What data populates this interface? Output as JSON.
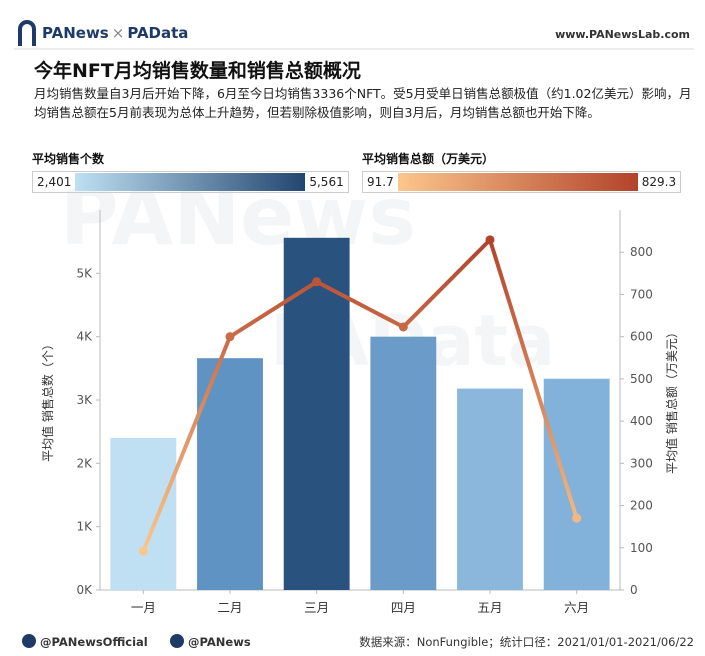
{
  "header": {
    "brand_left": "PANews",
    "brand_sep": "×",
    "brand_right": "PAData",
    "site_url": "www.PANewsLab.com"
  },
  "title": "今年NFT月均销售数量和销售总额概况",
  "subtitle": "月均销售数量自3月后开始下降，6月至今日均销售3336个NFT。受5月受单日销售总额极值（约1.02亿美元）影响，月均销售总额在5月前表现为总体上升趋势，但若剔除极值影响，则自3月后，月均销售总额也开始下降。",
  "legend_count": {
    "title": "平均销售个数",
    "min": "2,401",
    "max": "5,561",
    "color_min": "#bfe0f3",
    "color_max": "#22466f"
  },
  "legend_amount": {
    "title": "平均销售总额（万美元）",
    "min": "91.7",
    "max": "829.3",
    "color_min": "#fcc68c",
    "color_max": "#b2432a"
  },
  "watermarks": {
    "big": "PANews",
    "small": "PAData"
  },
  "footer": {
    "twitter": "@PANewsOfficial",
    "weibo": "@PANews",
    "source": "数据来源：NonFungible；统计口径：2021/01/01-2021/06/22"
  },
  "chart_data": {
    "type": "bar+line",
    "categories": [
      "一月",
      "二月",
      "三月",
      "四月",
      "五月",
      "六月"
    ],
    "series": [
      {
        "name": "平均销售个数",
        "type": "bar",
        "axis": "left",
        "values": [
          2401,
          3660,
          5561,
          4000,
          3180,
          3336
        ]
      },
      {
        "name": "平均销售总额（万美元）",
        "type": "line",
        "axis": "right",
        "values": [
          91.7,
          600,
          730,
          623,
          829.3,
          170
        ]
      }
    ],
    "ylabel_left": "平均值 销售总数（个）",
    "ylabel_right": "平均值 销售总额（万美元）",
    "ylim_left": [
      0,
      6000
    ],
    "yticks_left": [
      0,
      1000,
      2000,
      3000,
      4000,
      5000
    ],
    "ytick_labels_left": [
      "0K",
      "1K",
      "2K",
      "3K",
      "4K",
      "5K"
    ],
    "ylim_right": [
      0,
      900
    ],
    "yticks_right": [
      0,
      100,
      200,
      300,
      400,
      500,
      600,
      700,
      800
    ],
    "ytick_labels_right": [
      "0",
      "100",
      "200",
      "300",
      "400",
      "500",
      "600",
      "700",
      "800"
    ],
    "bar_colors": [
      "#bfe0f3",
      "#5f93c3",
      "#2a527e",
      "#6a9bc9",
      "#8cb7dc",
      "#82b1d9"
    ],
    "grid": false
  }
}
